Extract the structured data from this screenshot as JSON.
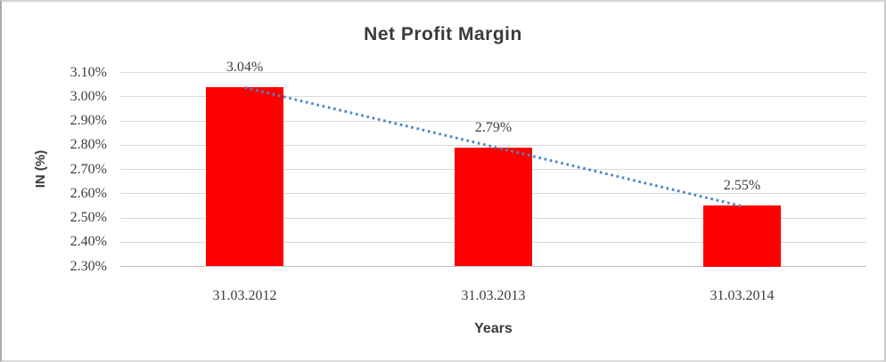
{
  "chart_data": {
    "type": "bar",
    "title": "Net Profit Margin",
    "xlabel": "Years",
    "ylabel": "IN (%)",
    "categories": [
      "31.03.2012",
      "31.03.2013",
      "31.03.2014"
    ],
    "values": [
      3.04,
      2.79,
      2.55
    ],
    "data_labels": [
      "3.04%",
      "2.79%",
      "2.55%"
    ],
    "ylim": [
      2.3,
      3.1
    ],
    "ytick_labels_top_to_bottom": [
      "3.10%",
      "3.00%",
      "2.90%",
      "2.80%",
      "2.70%",
      "2.60%",
      "2.50%",
      "2.40%",
      "2.30%"
    ],
    "grid": true,
    "legend": "none",
    "bar_color": "#ff0000",
    "trendline": {
      "kind": "linear",
      "style": "dotted",
      "color": "#4a86c8"
    },
    "text_color": "#3d3d3d",
    "gridline_color": "#d9d9d9"
  }
}
